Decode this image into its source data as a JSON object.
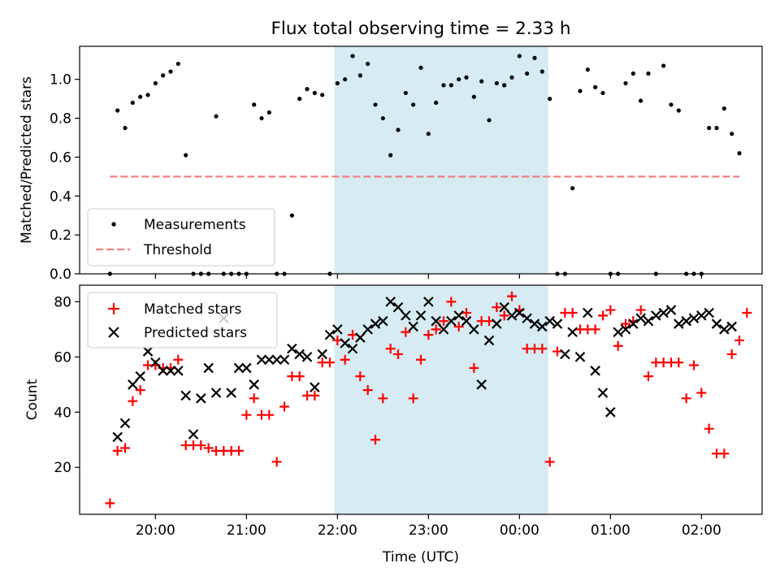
{
  "chart_data": {
    "title": "Flux total observing time = 2.33 h",
    "xlabel": "Time (UTC)",
    "x_ticks": [
      "20:00",
      "21:00",
      "22:00",
      "23:00",
      "00:00",
      "01:00",
      "02:00"
    ],
    "highlight": {
      "start": "21:58",
      "end": "00:19",
      "color": "#add8e6"
    },
    "panels": [
      {
        "type": "scatter",
        "ylabel": "Matched/Predicted stars",
        "ylim": [
          0,
          1.17
        ],
        "y_ticks": [
          "0.0",
          "0.2",
          "0.4",
          "0.6",
          "0.8",
          "1.0"
        ],
        "legend": {
          "position": "lower left",
          "entries": [
            "Measurements",
            "Threshold"
          ]
        },
        "threshold": {
          "name": "Threshold",
          "value": 0.5,
          "color": "#f08080",
          "style": "dashed",
          "x_start": "19:30",
          "x_end": "02:25"
        },
        "series": [
          {
            "name": "Measurements",
            "marker": "dot",
            "color": "#000000",
            "x": [
              "19:30",
              "19:35",
              "19:40",
              "19:45",
              "19:50",
              "19:55",
              "20:00",
              "20:05",
              "20:10",
              "20:15",
              "20:20",
              "20:25",
              "20:30",
              "20:35",
              "20:40",
              "20:45",
              "20:50",
              "20:55",
              "21:00",
              "21:05",
              "21:10",
              "21:15",
              "21:20",
              "21:25",
              "21:30",
              "21:35",
              "21:40",
              "21:45",
              "21:50",
              "21:55",
              "22:00",
              "22:05",
              "22:10",
              "22:15",
              "22:20",
              "22:25",
              "22:30",
              "22:35",
              "22:40",
              "22:45",
              "22:50",
              "22:55",
              "23:00",
              "23:05",
              "23:10",
              "23:15",
              "23:20",
              "23:25",
              "23:30",
              "23:35",
              "23:40",
              "23:45",
              "23:50",
              "23:55",
              "00:00",
              "00:05",
              "00:10",
              "00:15",
              "00:20",
              "00:25",
              "00:30",
              "00:35",
              "00:40",
              "00:45",
              "00:50",
              "00:55",
              "01:00",
              "01:05",
              "01:10",
              "01:15",
              "01:20",
              "01:25",
              "01:30",
              "01:35",
              "01:40",
              "01:45",
              "01:50",
              "01:55",
              "02:00",
              "02:05",
              "02:10",
              "02:15",
              "02:20",
              "02:25"
            ],
            "y": [
              0.0,
              0.84,
              0.75,
              0.88,
              0.91,
              0.92,
              0.98,
              1.02,
              1.04,
              1.08,
              0.61,
              0.0,
              0.0,
              0.0,
              0.81,
              0.0,
              0.0,
              0.0,
              0.0,
              0.87,
              0.8,
              0.83,
              0.0,
              0.0,
              0.3,
              0.9,
              0.95,
              0.93,
              0.92,
              0.0,
              0.98,
              1.0,
              1.12,
              1.02,
              1.08,
              0.87,
              0.8,
              0.61,
              0.74,
              0.93,
              0.87,
              1.06,
              0.72,
              0.88,
              0.97,
              0.97,
              1.0,
              1.01,
              0.91,
              0.99,
              0.79,
              0.98,
              0.97,
              1.01,
              1.12,
              1.03,
              1.11,
              1.04,
              0.9,
              0.0,
              0.0,
              0.44,
              0.94,
              1.05,
              0.96,
              0.93,
              0.0,
              0.0,
              0.98,
              1.03,
              0.89,
              1.03,
              0.0,
              1.07,
              0.87,
              0.84,
              0.0,
              0.0,
              0.0,
              0.75,
              0.75,
              0.85,
              0.72,
              0.62
            ]
          }
        ]
      },
      {
        "type": "scatter",
        "ylabel": "Count",
        "ylim": [
          3,
          86
        ],
        "y_ticks": [
          "20",
          "40",
          "60",
          "80"
        ],
        "legend": {
          "position": "upper left",
          "entries": [
            "Matched stars",
            "Predicted stars"
          ]
        },
        "series": [
          {
            "name": "Matched stars",
            "marker": "plus",
            "color": "#ff0000",
            "x": [
              "19:30",
              "19:35",
              "19:40",
              "19:45",
              "19:50",
              "19:55",
              "20:00",
              "20:05",
              "20:10",
              "20:15",
              "20:20",
              "20:25",
              "20:30",
              "20:35",
              "20:40",
              "20:45",
              "20:50",
              "20:55",
              "21:00",
              "21:05",
              "21:10",
              "21:15",
              "21:20",
              "21:25",
              "21:30",
              "21:35",
              "21:40",
              "21:45",
              "21:50",
              "21:55",
              "22:00",
              "22:05",
              "22:10",
              "22:15",
              "22:20",
              "22:25",
              "22:30",
              "22:35",
              "22:40",
              "22:45",
              "22:50",
              "22:55",
              "23:00",
              "23:05",
              "23:10",
              "23:15",
              "23:20",
              "23:25",
              "23:30",
              "23:35",
              "23:40",
              "23:45",
              "23:50",
              "23:55",
              "00:00",
              "00:05",
              "00:10",
              "00:15",
              "00:20",
              "00:25",
              "00:30",
              "00:35",
              "00:40",
              "00:45",
              "00:50",
              "00:55",
              "01:00",
              "01:05",
              "01:10",
              "01:15",
              "01:20",
              "01:25",
              "01:30",
              "01:35",
              "01:40",
              "01:45",
              "01:50",
              "01:55",
              "02:00",
              "02:05",
              "02:10",
              "02:15",
              "02:20",
              "02:25",
              "02:30"
            ],
            "y": [
              7,
              26,
              27,
              44,
              48,
              57,
              57,
              56,
              56,
              59,
              28,
              28,
              28,
              27,
              26,
              26,
              26,
              26,
              39,
              45,
              39,
              39,
              22,
              42,
              53,
              53,
              46,
              46,
              58,
              58,
              66,
              59,
              68,
              53,
              48,
              30,
              45,
              63,
              61,
              69,
              45,
              59,
              68,
              70,
              73,
              80,
              71,
              76,
              56,
              73,
              73,
              78,
              75,
              82,
              77,
              63,
              63,
              63,
              22,
              62,
              76,
              76,
              70,
              70,
              70,
              75,
              77,
              64,
              72,
              73,
              77,
              53,
              58,
              58,
              58,
              58,
              45,
              57,
              47,
              34,
              25,
              25,
              61,
              66,
              76
            ]
          },
          {
            "name": "Predicted stars",
            "marker": "x",
            "color": "#000000",
            "x": [
              "19:35",
              "19:40",
              "19:45",
              "19:50",
              "19:55",
              "20:00",
              "20:05",
              "20:10",
              "20:15",
              "20:20",
              "20:25",
              "20:30",
              "20:35",
              "20:40",
              "20:45",
              "20:50",
              "20:55",
              "21:00",
              "21:05",
              "21:10",
              "21:15",
              "21:20",
              "21:25",
              "21:30",
              "21:35",
              "21:40",
              "21:45",
              "21:50",
              "21:55",
              "22:00",
              "22:05",
              "22:10",
              "22:15",
              "22:20",
              "22:25",
              "22:30",
              "22:35",
              "22:40",
              "22:45",
              "22:50",
              "22:55",
              "23:00",
              "23:05",
              "23:10",
              "23:15",
              "23:20",
              "23:25",
              "23:30",
              "23:35",
              "23:40",
              "23:45",
              "23:50",
              "23:55",
              "00:00",
              "00:05",
              "00:10",
              "00:15",
              "00:20",
              "00:25",
              "00:30",
              "00:35",
              "00:40",
              "00:45",
              "00:50",
              "00:55",
              "01:00",
              "01:05",
              "01:10",
              "01:15",
              "01:20",
              "01:25",
              "01:30",
              "01:35",
              "01:40",
              "01:45",
              "01:50",
              "01:55",
              "02:00",
              "02:05",
              "02:10",
              "02:15",
              "02:20"
            ],
            "y": [
              31,
              36,
              50,
              53,
              62,
              58,
              55,
              55,
              55,
              46,
              32,
              45,
              56,
              47,
              74,
              47,
              56,
              56,
              50,
              59,
              59,
              59,
              59,
              63,
              61,
              60,
              49,
              61,
              68,
              70,
              65,
              63,
              67,
              70,
              72,
              73,
              80,
              78,
              75,
              71,
              75,
              80,
              73,
              70,
              73,
              75,
              73,
              70,
              50,
              66,
              72,
              78,
              75,
              76,
              74,
              72,
              71,
              73,
              72,
              61,
              69,
              60,
              76,
              55,
              47,
              40,
              69,
              70,
              72,
              74,
              73,
              75,
              76,
              77,
              72,
              73,
              74,
              75,
              76,
              72,
              70,
              71
            ]
          }
        ]
      }
    ]
  }
}
